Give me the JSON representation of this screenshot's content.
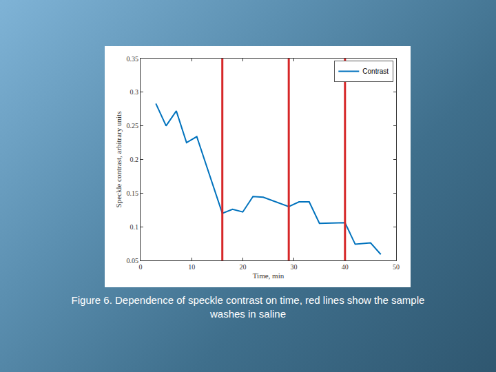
{
  "chart_data": {
    "type": "line",
    "x_label": "Time, min",
    "y_label": "Speckle contrast, arbitrary units",
    "x": [
      3,
      5,
      7,
      9,
      11,
      16,
      18,
      20,
      22,
      24,
      29,
      31,
      33,
      35,
      40,
      42,
      45,
      47
    ],
    "series": [
      {
        "name": "Contrast",
        "color": "#0072bd",
        "values": [
          0.283,
          0.25,
          0.272,
          0.225,
          0.234,
          0.12,
          0.126,
          0.122,
          0.145,
          0.144,
          0.13,
          0.137,
          0.137,
          0.105,
          0.106,
          0.074,
          0.076,
          0.059
        ]
      }
    ],
    "xlim": [
      0,
      50
    ],
    "xticks": [
      0,
      10,
      20,
      30,
      40,
      50
    ],
    "ylim": [
      0.05,
      0.35
    ],
    "yticks": [
      0.05,
      0.1,
      0.15,
      0.2,
      0.25,
      0.3,
      0.35
    ],
    "grid": false,
    "legend": "top-right",
    "vertical_lines": {
      "x": [
        16,
        29,
        40
      ],
      "color": "#d62728"
    }
  },
  "caption": "Figure 6. Dependence of speckle contrast on time, red lines show the sample washes in saline"
}
